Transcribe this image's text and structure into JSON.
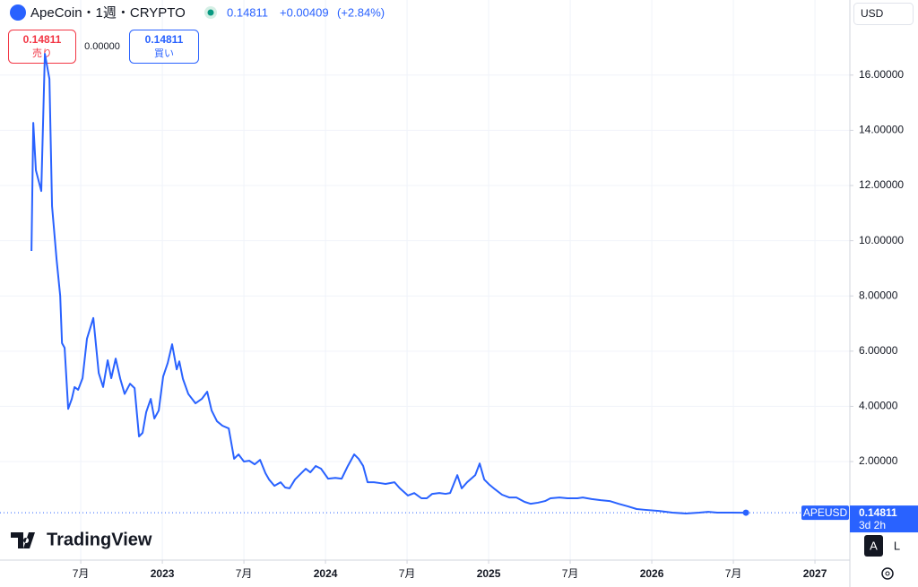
{
  "header": {
    "title": "ApeCoin・1週・CRYPTO",
    "price": "0.14811",
    "change": "+0.00409",
    "change_pct": "(+2.84%)"
  },
  "trade": {
    "sell_price": "0.14811",
    "sell_label": "売り",
    "spread": "0.00000",
    "buy_price": "0.14811",
    "buy_label": "買い"
  },
  "toolbar": {
    "currency": "USD",
    "logo": "TradingView",
    "auto_button": "A",
    "log_button": "L",
    "countdown": "3d 2h"
  },
  "chart_data": {
    "type": "line",
    "grid": true,
    "log_scale": false,
    "xlim": [
      2022.005,
      2027.203
    ],
    "xticks": [
      {
        "value": 2022.5,
        "label": "7月"
      },
      2023,
      {
        "value": 2023.5,
        "label": "7月"
      },
      2024,
      {
        "value": 2024.5,
        "label": "7月"
      },
      2025,
      {
        "value": 2025.5,
        "label": "7月"
      },
      2026,
      {
        "value": 2026.5,
        "label": "7月"
      },
      2027
    ],
    "ylim": [
      -1.57,
      18.72
    ],
    "yticks": [
      {
        "value": 2,
        "label": "2.00000"
      },
      {
        "value": 4,
        "label": "4.00000"
      },
      {
        "value": 6,
        "label": "6.00000"
      },
      {
        "value": 8,
        "label": "8.00000"
      },
      {
        "value": 10,
        "label": "10.00000"
      },
      {
        "value": 12,
        "label": "12.00000"
      },
      {
        "value": 14,
        "label": "14.00000"
      },
      {
        "value": 16,
        "label": "16.00000"
      }
    ],
    "last_value": 0.14811,
    "series": [
      {
        "name": "APEUSD",
        "color": "#2962ff",
        "x": [
          2022.198,
          2022.209,
          2022.225,
          2022.258,
          2022.28,
          2022.308,
          2022.324,
          2022.352,
          2022.374,
          2022.385,
          2022.401,
          2022.423,
          2022.445,
          2022.462,
          2022.484,
          2022.511,
          2022.538,
          2022.577,
          2022.61,
          2022.637,
          2022.665,
          2022.687,
          2022.714,
          2022.742,
          2022.769,
          2022.802,
          2022.83,
          2022.857,
          2022.879,
          2022.901,
          2022.929,
          2022.951,
          2022.978,
          2023.005,
          2023.033,
          2023.06,
          2023.088,
          2023.104,
          2023.126,
          2023.159,
          2023.203,
          2023.242,
          2023.275,
          2023.302,
          2023.335,
          2023.368,
          2023.407,
          2023.44,
          2023.467,
          2023.5,
          2023.533,
          2023.566,
          2023.599,
          2023.632,
          2023.654,
          2023.687,
          2023.725,
          2023.753,
          2023.78,
          2023.813,
          2023.852,
          2023.879,
          2023.907,
          2023.94,
          2023.973,
          2024.016,
          2024.06,
          2024.099,
          2024.137,
          2024.176,
          2024.203,
          2024.231,
          2024.258,
          2024.297,
          2024.335,
          2024.368,
          2024.423,
          2024.456,
          2024.505,
          2024.544,
          2024.588,
          2024.621,
          2024.654,
          2024.698,
          2024.736,
          2024.764,
          2024.808,
          2024.835,
          2024.868,
          2024.918,
          2024.945,
          2024.973,
          2025.005,
          2025.038,
          2025.082,
          2025.126,
          2025.17,
          2025.22,
          2025.258,
          2025.302,
          2025.346,
          2025.379,
          2025.434,
          2025.484,
          2025.544,
          2025.577,
          2025.632,
          2025.687,
          2025.742,
          2025.797,
          2025.852,
          2025.907,
          2025.962,
          2026.044,
          2026.126,
          2026.209,
          2026.291,
          2026.346,
          2026.401,
          2026.484,
          2026.577
        ],
        "values": [
          9.63,
          14.27,
          12.55,
          11.8,
          16.77,
          15.86,
          11.25,
          9.31,
          8.0,
          6.29,
          6.12,
          3.91,
          4.27,
          4.7,
          4.6,
          5.02,
          6.45,
          7.2,
          5.21,
          4.7,
          5.67,
          5.02,
          5.73,
          5.0,
          4.45,
          4.82,
          4.66,
          2.91,
          3.04,
          3.79,
          4.27,
          3.56,
          3.85,
          5.08,
          5.57,
          6.25,
          5.34,
          5.63,
          5.0,
          4.45,
          4.11,
          4.27,
          4.53,
          3.85,
          3.46,
          3.3,
          3.2,
          2.1,
          2.26,
          2.0,
          2.03,
          1.9,
          2.06,
          1.58,
          1.35,
          1.12,
          1.25,
          1.06,
          1.03,
          1.35,
          1.58,
          1.74,
          1.61,
          1.84,
          1.74,
          1.38,
          1.41,
          1.38,
          1.84,
          2.26,
          2.1,
          1.84,
          1.25,
          1.25,
          1.22,
          1.19,
          1.25,
          1.03,
          0.77,
          0.86,
          0.67,
          0.67,
          0.83,
          0.86,
          0.83,
          0.86,
          1.51,
          1.03,
          1.25,
          1.51,
          1.93,
          1.35,
          1.16,
          1.0,
          0.8,
          0.7,
          0.7,
          0.54,
          0.47,
          0.51,
          0.57,
          0.67,
          0.7,
          0.67,
          0.67,
          0.7,
          0.64,
          0.6,
          0.57,
          0.47,
          0.38,
          0.28,
          0.25,
          0.21,
          0.15,
          0.12,
          0.15,
          0.18,
          0.15,
          0.15,
          0.14811
        ]
      }
    ]
  }
}
